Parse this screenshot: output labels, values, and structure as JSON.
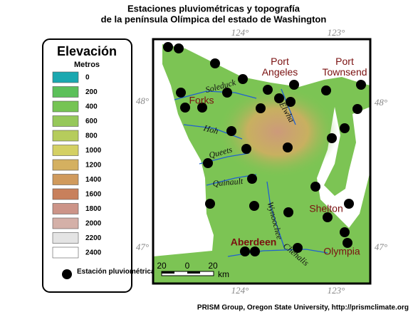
{
  "title": [
    "Estaciones pluviométricas y topografía",
    "de la península Olímpica del estado de Washington"
  ],
  "legend": {
    "title": "Elevación",
    "unit": "Metros",
    "items": [
      {
        "label": "0",
        "color": "#1aa8b0"
      },
      {
        "label": "200",
        "color": "#5cc05a"
      },
      {
        "label": "400",
        "color": "#76c454"
      },
      {
        "label": "600",
        "color": "#96c85a"
      },
      {
        "label": "800",
        "color": "#b6cc5c"
      },
      {
        "label": "1000",
        "color": "#d4d064"
      },
      {
        "label": "1200",
        "color": "#d4b060"
      },
      {
        "label": "1400",
        "color": "#d09a5c"
      },
      {
        "label": "1600",
        "color": "#c8805c"
      },
      {
        "label": "1800",
        "color": "#cc9488"
      },
      {
        "label": "2000",
        "color": "#d4b0a8"
      },
      {
        "label": "2200",
        "color": "#e4e4e4"
      },
      {
        "label": "2400",
        "color": "#ffffff"
      }
    ],
    "station": "Estación pluviométrica"
  },
  "graticule": {
    "lon": [
      "124°",
      "123°"
    ],
    "lat": [
      "48°",
      "47°"
    ]
  },
  "places": [
    "Port Angeles",
    "Port Townsend",
    "Forks",
    "Shelton",
    "Aberdeen",
    "Olympia"
  ],
  "rivers": [
    "Soleduck",
    "Elwha",
    "Hoh",
    "Queets",
    "Quinault",
    "Wynoochee",
    "Chehalis"
  ],
  "scale": {
    "labels": [
      "20",
      "0",
      "20"
    ],
    "unit": "km"
  },
  "footer": "PRISM Group, Oregon State University, http://prismclimate.org"
}
